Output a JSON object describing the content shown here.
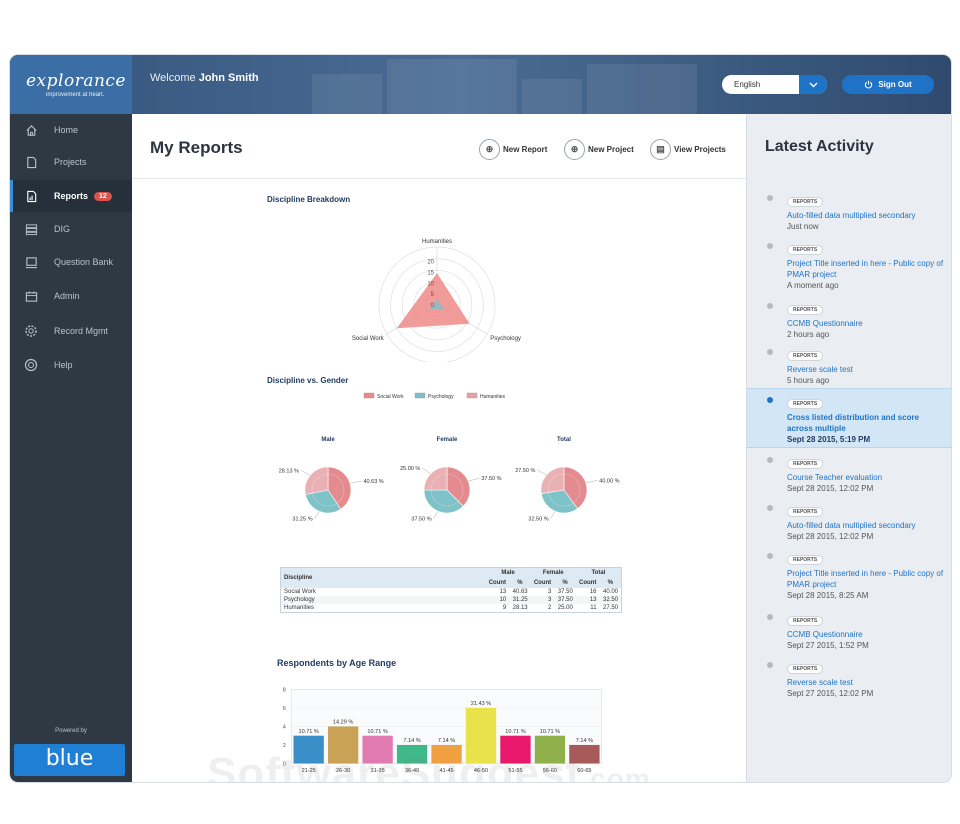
{
  "brand": {
    "logo": "explorance",
    "tagline": "improvement at heart."
  },
  "header": {
    "welcome_prefix": "Welcome",
    "user_name": "John Smith",
    "language": "English",
    "sign_out_label": "Sign Out"
  },
  "sidebar": {
    "items": [
      {
        "label": "Home",
        "icon": "home-icon"
      },
      {
        "label": "Projects",
        "icon": "document-icon"
      },
      {
        "label": "Reports",
        "icon": "report-icon",
        "badge": "12",
        "active": true
      },
      {
        "label": "DIG",
        "icon": "layers-icon"
      },
      {
        "label": "Question Bank",
        "icon": "bank-icon"
      },
      {
        "label": "Admin",
        "icon": "calendar-icon"
      },
      {
        "label": "Record Mgmt",
        "icon": "gear-icon"
      },
      {
        "label": "Help",
        "icon": "help-icon"
      }
    ],
    "powered_by": "Powered by",
    "blue_logo": "blue"
  },
  "main": {
    "title": "My Reports",
    "toolbar": {
      "new_report": "New Report",
      "new_project": "New Project",
      "view_projects": "View Projects"
    }
  },
  "chart_data": [
    {
      "type": "radar",
      "title": "Discipline Breakdown",
      "axes": [
        "Humanities",
        "Psychology",
        "Social Work"
      ],
      "ticks": [
        "20",
        "15",
        "10",
        "5",
        "0"
      ],
      "rmax": 20,
      "series": [
        {
          "name": "",
          "values": [
            11,
            13,
            16
          ],
          "color": "#f08a8a"
        },
        {
          "name": "",
          "values": [
            2,
            3,
            3
          ],
          "color": "#7ec0c8"
        }
      ]
    },
    {
      "type": "pie",
      "title": "Discipline vs. Gender",
      "legend": [
        "Social Work",
        "Psychology",
        "Humanities"
      ],
      "legend_colors": [
        "#e98a8a",
        "#7ec0c8",
        "#e8a0a4"
      ],
      "charts": [
        {
          "name": "Male",
          "values": [
            40.63,
            31.25,
            28.13
          ],
          "labels": [
            "40.63 %",
            "31.25 %",
            "28.13 %"
          ]
        },
        {
          "name": "Female",
          "values": [
            37.5,
            37.5,
            25.0
          ],
          "labels": [
            "37.50 %",
            "37.50 %",
            "25.00 %"
          ]
        },
        {
          "name": "Total",
          "values": [
            40.0,
            32.5,
            27.5
          ],
          "labels": [
            "40.00 %",
            "32.50 %",
            "27.50 %"
          ]
        }
      ]
    },
    {
      "type": "table",
      "headers": [
        "Discipline",
        "Male",
        "Female",
        "Total"
      ],
      "subheaders": [
        "Count",
        "%",
        "Count",
        "%",
        "Count",
        "%"
      ],
      "rows": [
        [
          "Social Work",
          "13",
          "40.63",
          "3",
          "37.50",
          "16",
          "40.00"
        ],
        [
          "Psychology",
          "10",
          "31.25",
          "3",
          "37.50",
          "13",
          "32.50"
        ],
        [
          "Humanities",
          "9",
          "28.13",
          "2",
          "25.00",
          "11",
          "27.50"
        ]
      ]
    },
    {
      "type": "bar",
      "title": "Respondents by Age Range",
      "categories": [
        "21-25",
        "26-30",
        "31-35",
        "36-40",
        "41-45",
        "46-50",
        "51-55",
        "56-60",
        "60-65"
      ],
      "values": [
        3,
        4,
        3,
        2,
        2,
        6,
        3,
        3,
        2
      ],
      "labels": [
        "10.71 %",
        "14.29 %",
        "10.71 %",
        "7.14 %",
        "7.14 %",
        "21.43 %",
        "10.71 %",
        "10.71 %",
        "7.14 %"
      ],
      "colors": [
        "#3a8fc9",
        "#c9a256",
        "#e07ab0",
        "#3fb98a",
        "#f0a040",
        "#e9e24a",
        "#e8186c",
        "#8fb04a",
        "#a85a5a"
      ],
      "ylim": [
        0,
        8
      ],
      "yticks": [
        "0",
        "2",
        "4",
        "6",
        "8"
      ]
    }
  ],
  "activity": {
    "title": "Latest Activity",
    "items": [
      {
        "tag": "REPORTS",
        "text": "Auto-filled data multiplied secondary",
        "time": "Just now"
      },
      {
        "tag": "REPORTS",
        "text": "Project Title inserted in here - Public copy of PMAR project",
        "time": "A moment ago"
      },
      {
        "tag": "REPORTS",
        "text": "CCMB Questionnaire",
        "time": "2 hours ago"
      },
      {
        "tag": "REPORTS",
        "text": "Reverse scale test",
        "time": "5 hours ago"
      },
      {
        "tag": "REPORTS",
        "text": "Cross listed distribution and score across multiple",
        "time": "Sept 28 2015, 5:19 PM",
        "highlight": true
      },
      {
        "tag": "REPORTS",
        "text": "Course Teacher evaluation",
        "time": "Sept 28 2015, 12:02 PM"
      },
      {
        "tag": "REPORTS",
        "text": "Auto-filled data multiplied secondary",
        "time": "Sept 28 2015, 12:02 PM"
      },
      {
        "tag": "REPORTS",
        "text": "Project Title inserted in here - Public copy of PMAR project",
        "time": "Sept 28 2015, 8:25 AM"
      },
      {
        "tag": "REPORTS",
        "text": "CCMB Questionnaire",
        "time": "Sept 27 2015, 1:52 PM"
      },
      {
        "tag": "REPORTS",
        "text": "Reverse scale test",
        "time": "Sept 27 2015, 12:02 PM"
      }
    ]
  },
  "watermark": {
    "main": "SoftwareSuggest",
    "suffix": ".com"
  },
  "colors": {
    "sidebar": "#2f3944",
    "brand": "#3a6ea5",
    "accent": "#1f73c6",
    "badge": "#d9534f",
    "highlight": "#d3e6f6"
  }
}
